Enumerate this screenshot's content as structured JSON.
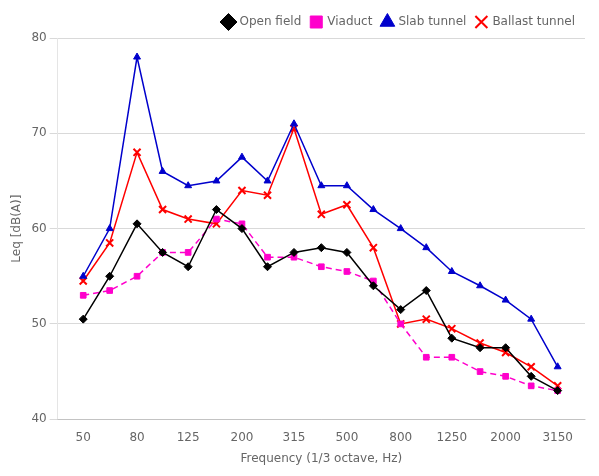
{
  "chart_data": {
    "type": "line",
    "xlabel": "Frequency (1/3 octave, Hz)",
    "ylabel": "Leq [dB(A)]",
    "x": [
      50,
      63,
      80,
      100,
      125,
      160,
      200,
      250,
      315,
      400,
      500,
      630,
      800,
      1000,
      1250,
      1600,
      2000,
      2500,
      3150
    ],
    "series": [
      {
        "name": "Open field",
        "color": "#000000",
        "marker": "diamond",
        "line_style": "solid",
        "values": [
          50.5,
          55.0,
          60.5,
          57.5,
          56.0,
          62.0,
          60.0,
          56.0,
          57.5,
          58.0,
          57.5,
          54.0,
          51.5,
          53.5,
          48.5,
          47.5,
          47.5,
          44.5,
          43.0
        ]
      },
      {
        "name": "Viaduct",
        "color": "#ff00cc",
        "marker": "square",
        "line_style": "dashed",
        "values": [
          53.0,
          53.5,
          55.0,
          57.5,
          57.5,
          61.0,
          60.5,
          57.0,
          57.0,
          56.0,
          55.5,
          54.5,
          50.0,
          46.5,
          46.5,
          45.0,
          44.5,
          43.5,
          43.0
        ]
      },
      {
        "name": "Slab tunnel",
        "color": "#0000cc",
        "marker": "triangle",
        "line_style": "solid",
        "values": [
          55.0,
          60.0,
          78.0,
          66.0,
          64.5,
          65.0,
          67.5,
          65.0,
          71.0,
          64.5,
          64.5,
          62.0,
          60.0,
          58.0,
          55.5,
          54.0,
          52.5,
          50.5,
          45.5
        ]
      },
      {
        "name": "Ballast tunnel",
        "color": "#ff0000",
        "marker": "x",
        "line_style": "solid",
        "values": [
          54.5,
          58.5,
          68.0,
          62.0,
          61.0,
          60.5,
          64.0,
          63.5,
          70.5,
          61.5,
          62.5,
          58.0,
          50.0,
          50.5,
          49.5,
          48.0,
          47.0,
          45.5,
          43.5
        ]
      }
    ],
    "log": "x",
    "xlim": [
      40,
      4000
    ],
    "xticks": [
      50,
      80,
      125,
      200,
      315,
      500,
      800,
      1250,
      2000,
      3150
    ],
    "ylim": [
      40,
      80
    ],
    "yticks": [
      40,
      50,
      60,
      70,
      80
    ],
    "grid": "y",
    "legend": "upper right"
  }
}
